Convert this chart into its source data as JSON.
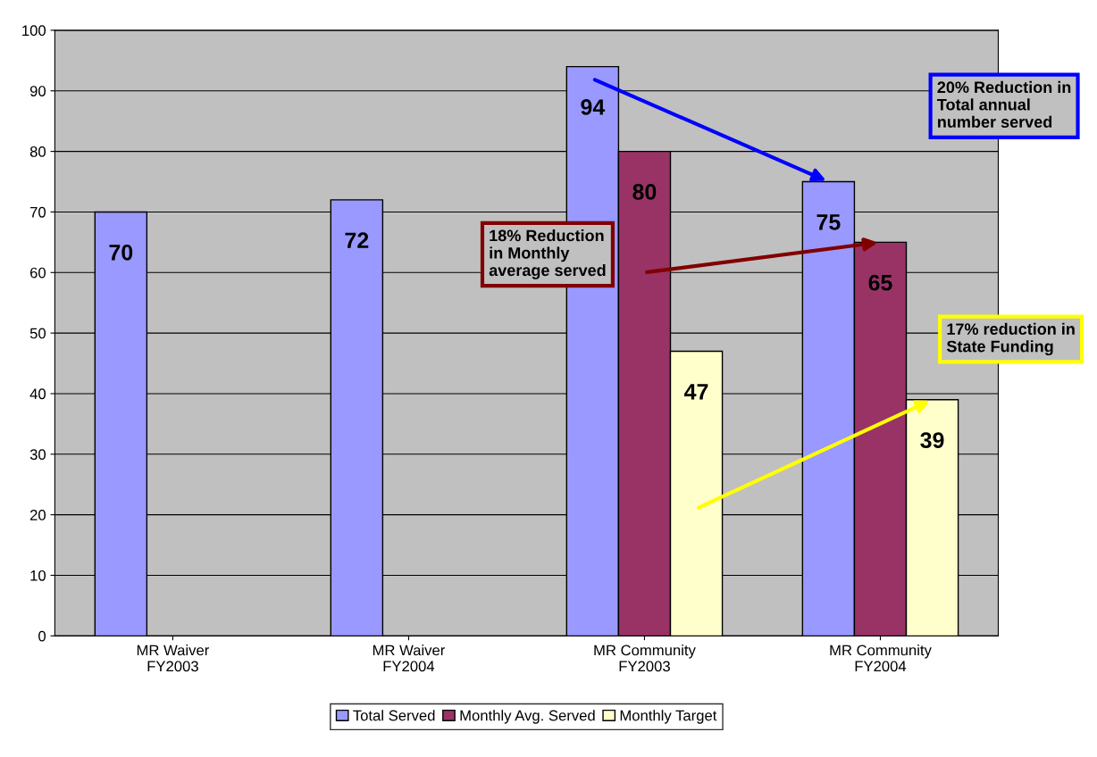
{
  "chart_data": {
    "type": "bar",
    "categories": [
      "MR Waiver\nFY2003",
      "MR Waiver\nFY2004",
      "MR Community\nFY2003",
      "MR Community\nFY2004"
    ],
    "series": [
      {
        "name": "Total Served",
        "color": "#9999ff",
        "values": [
          70,
          72,
          94,
          75
        ]
      },
      {
        "name": "Monthly Avg. Served",
        "color": "#993366",
        "values": [
          null,
          null,
          80,
          65
        ]
      },
      {
        "name": "Monthly Target",
        "color": "#ffffcc",
        "values": [
          null,
          null,
          47,
          39
        ]
      }
    ],
    "ylim": [
      0,
      100
    ],
    "yticks": [
      0,
      10,
      20,
      30,
      40,
      50,
      60,
      70,
      80,
      90,
      100
    ],
    "grid": "y",
    "legend": "bottom",
    "data_labels": true,
    "annotations": [
      "20% Reduction in\nTotal annual\nnumber served",
      "18% Reduction\nin Monthly\naverage served",
      "17% reduction in\nState Funding"
    ]
  }
}
